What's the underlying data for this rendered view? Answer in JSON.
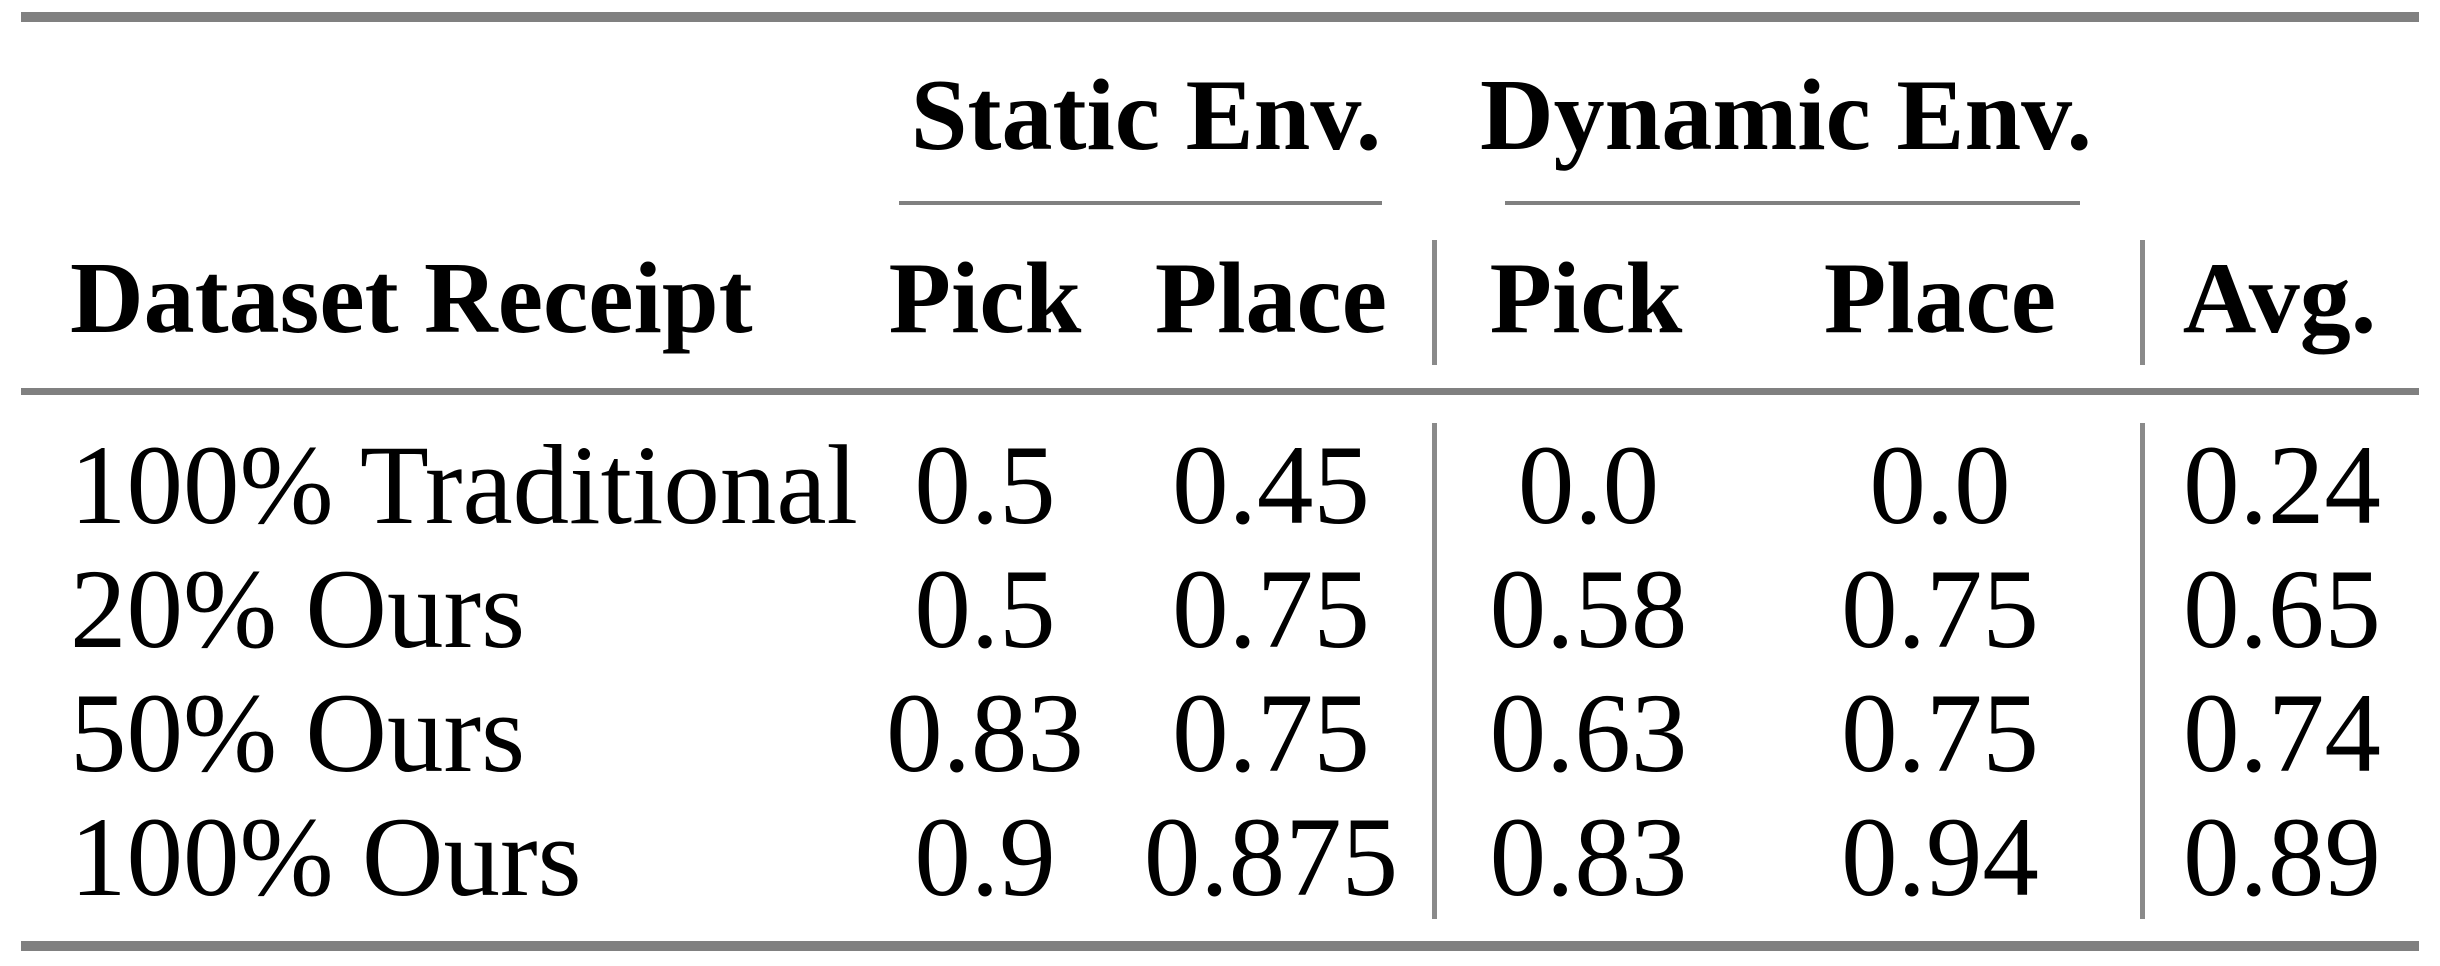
{
  "colors": {
    "background": "#ffffff",
    "text": "#000000",
    "rule_gray": "#808080",
    "separator_gray": "#8a8a8a"
  },
  "table": {
    "groups": [
      {
        "label": "Static Env."
      },
      {
        "label": "Dynamic Env."
      }
    ],
    "headers": {
      "dataset": "Dataset Receipt",
      "static_pick": "Pick",
      "static_place": "Place",
      "dynamic_pick": "Pick",
      "dynamic_place": "Place",
      "avg": "Avg."
    },
    "rows": [
      {
        "label": "100% Traditional",
        "static_pick": "0.5",
        "static_place": "0.45",
        "dynamic_pick": "0.0",
        "dynamic_place": "0.0",
        "avg": "0.24"
      },
      {
        "label": "20% Ours",
        "static_pick": "0.5",
        "static_place": "0.75",
        "dynamic_pick": "0.58",
        "dynamic_place": "0.75",
        "avg": "0.65"
      },
      {
        "label": "50% Ours",
        "static_pick": "0.83",
        "static_place": "0.75",
        "dynamic_pick": "0.63",
        "dynamic_place": "0.75",
        "avg": "0.74"
      },
      {
        "label": "100% Ours",
        "static_pick": "0.9",
        "static_place": "0.875",
        "dynamic_pick": "0.83",
        "dynamic_place": "0.94",
        "avg": "0.89"
      }
    ]
  }
}
